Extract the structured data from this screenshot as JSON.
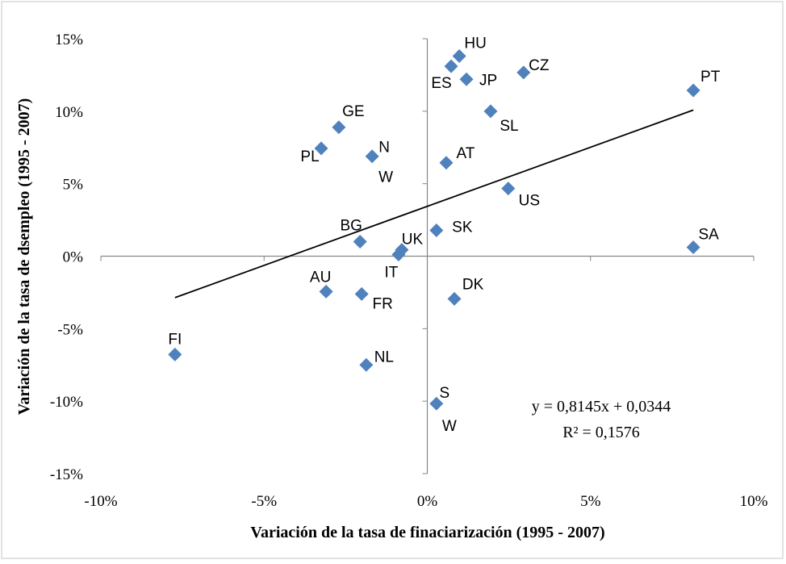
{
  "chart_data": {
    "type": "scatter",
    "x_label": "Variación de la tasa de finaciarización (1995 - 2007)",
    "y_label": "Variación de la tasa de dsempleo (1995 - 2007)",
    "xlim": [
      -10,
      10
    ],
    "ylim": [
      -15,
      15
    ],
    "xticks": [
      {
        "value": -10,
        "label": "-10%"
      },
      {
        "value": -5,
        "label": "-5%"
      },
      {
        "value": 0,
        "label": "0%"
      },
      {
        "value": 5,
        "label": "5%"
      },
      {
        "value": 10,
        "label": "10%"
      }
    ],
    "yticks": [
      {
        "value": -15,
        "label": "-15%"
      },
      {
        "value": -10,
        "label": "-10%"
      },
      {
        "value": -5,
        "label": "-5%"
      },
      {
        "value": 0,
        "label": "0%"
      },
      {
        "value": 5,
        "label": "5%"
      },
      {
        "value": 10,
        "label": "10%"
      },
      {
        "value": 15,
        "label": "15%"
      }
    ],
    "color": "#4f81bd",
    "labels": [
      "FI",
      "AU",
      "FR",
      "NL",
      "BG",
      "IT",
      "UK",
      "PL",
      "GE",
      [
        "N",
        "W"
      ],
      "SK",
      "DK",
      [
        "S",
        "W"
      ],
      "AT",
      "ES",
      "HU",
      "JP",
      "SL",
      "CZ",
      "US",
      "PT",
      "SA"
    ],
    "x": [
      -7.73,
      -3.1,
      -2.01,
      -1.87,
      -2.06,
      -0.88,
      -0.78,
      -3.25,
      -2.71,
      -1.69,
      0.28,
      0.83,
      0.28,
      0.58,
      0.73,
      0.98,
      1.2,
      1.94,
      2.95,
      2.48,
      8.15,
      8.15
    ],
    "y": [
      -6.78,
      -2.44,
      -2.61,
      -7.5,
      1.0,
      0.11,
      0.44,
      7.44,
      8.89,
      6.89,
      1.78,
      -2.94,
      -10.17,
      6.44,
      13.1,
      13.8,
      12.2,
      10.0,
      12.67,
      4.67,
      11.44,
      0.61
    ],
    "trendline": {
      "x": [
        -7.73,
        8.15
      ],
      "y": [
        -2.86,
        10.08
      ]
    },
    "annotations": [
      "y = 0,8145x + 0,0344",
      "R² = 0,1576"
    ]
  }
}
